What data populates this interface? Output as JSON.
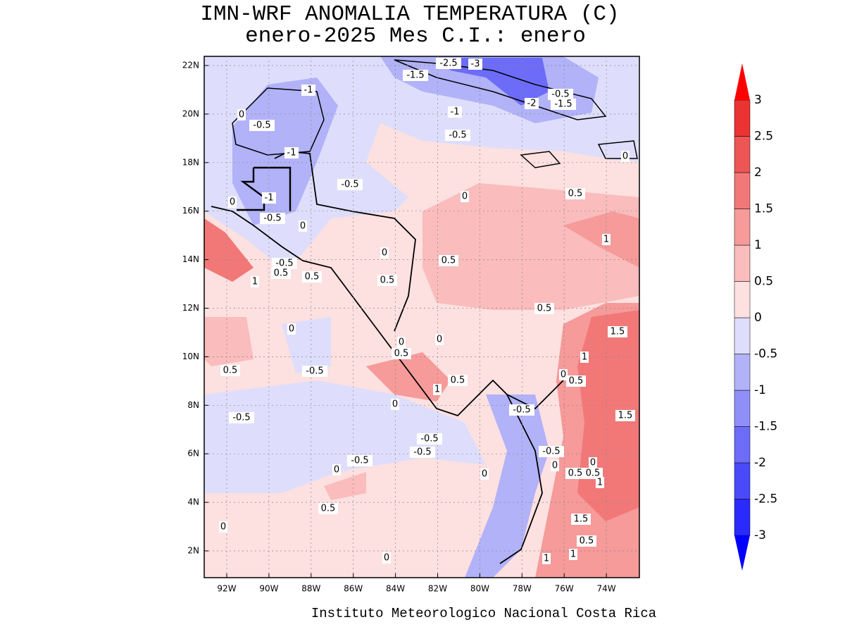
{
  "map": {
    "title": "IMN-WRF  ANOMALIA TEMPERATURA (C)",
    "subtitle": "enero-2025 Mes C.I.: enero",
    "footer": "Instituto Meteorologico Nacional Costa Rica",
    "lat_labels": [
      "22N",
      "20N",
      "18N",
      "16N",
      "14N",
      "12N",
      "10N",
      "8N",
      "6N",
      "4N",
      "2N"
    ],
    "lon_labels": [
      "92W",
      "90W",
      "88W",
      "86W",
      "84W",
      "82W",
      "80W",
      "78W",
      "76W",
      "74W"
    ],
    "colorbar": {
      "levels": [
        -3,
        -2.5,
        -2,
        -1.5,
        -1,
        -0.5,
        0,
        0.5,
        1,
        1.5,
        2,
        2.5,
        3
      ],
      "colors": [
        "#2a2afc",
        "#4a4afb",
        "#6c6cf9",
        "#8f8ff8",
        "#b2b2f9",
        "#dedefc",
        "#fde0e0",
        "#fabcbc",
        "#f69a9a",
        "#f27878",
        "#ee5555",
        "#eb3333"
      ],
      "extend_colors": [
        "#0000ff",
        "#ff0000"
      ]
    },
    "contour_labels": [
      "-2.5",
      "-3",
      "-1.5",
      "-1",
      "-0.5",
      "-1.5",
      "-2",
      "0",
      "-0.5",
      "-1",
      "-0.5",
      "-1",
      "0",
      "-0.5",
      "0",
      "0.5",
      "-1",
      "0",
      "-0.5",
      "0",
      "1",
      "0",
      "0.5",
      "-0.5",
      "0.5",
      "0.5",
      "0.5",
      "1",
      "0.5",
      "0",
      "1.5",
      "0",
      "0",
      "0.5",
      "1",
      "0.5",
      "-0.5",
      "0.5",
      "0",
      "0.5",
      "1",
      "0",
      "-0.5",
      "1.5",
      "-0.5",
      "-0.5",
      "-0.5",
      "-0.5",
      "0",
      "-0.5",
      "0",
      "0.5",
      "0",
      "0.5",
      "0",
      "1",
      "0.5",
      "1.5",
      "0",
      "0.5",
      "1",
      "1",
      "0"
    ]
  }
}
